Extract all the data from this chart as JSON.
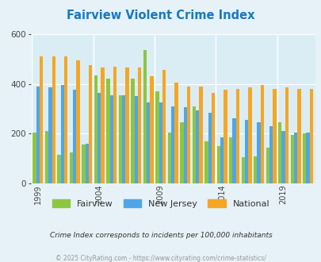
{
  "title": "Fairview Violent Crime Index",
  "years": [
    1999,
    2000,
    2001,
    2002,
    2003,
    2004,
    2005,
    2006,
    2007,
    2008,
    2009,
    2010,
    2011,
    2012,
    2013,
    2014,
    2015,
    2016,
    2017,
    2018,
    2019,
    2020,
    2021
  ],
  "fairview": [
    205,
    210,
    115,
    125,
    155,
    435,
    420,
    355,
    420,
    535,
    370,
    205,
    245,
    308,
    170,
    150,
    185,
    105,
    110,
    145,
    245,
    195,
    200
  ],
  "new_jersey": [
    390,
    385,
    395,
    375,
    160,
    365,
    355,
    355,
    350,
    325,
    325,
    310,
    305,
    295,
    285,
    185,
    260,
    255,
    245,
    230,
    210,
    205,
    205
  ],
  "national": [
    510,
    510,
    510,
    495,
    475,
    465,
    470,
    465,
    465,
    430,
    455,
    405,
    390,
    390,
    365,
    375,
    380,
    385,
    395,
    380,
    385,
    380,
    378
  ],
  "fairview_color": "#8dc63f",
  "nj_color": "#4da6e8",
  "national_color": "#f5a623",
  "bg_color": "#e6f2f7",
  "plot_bg": "#daedf5",
  "ylim": [
    0,
    600
  ],
  "yticks": [
    0,
    200,
    400,
    600
  ],
  "title_color": "#1a78c2",
  "subtitle": "Crime Index corresponds to incidents per 100,000 inhabitants",
  "footer": "© 2025 CityRating.com - https://www.cityrating.com/crime-statistics/",
  "subtitle_color": "#333333",
  "footer_color": "#999999",
  "tick_years": [
    1999,
    2004,
    2009,
    2014,
    2019
  ]
}
